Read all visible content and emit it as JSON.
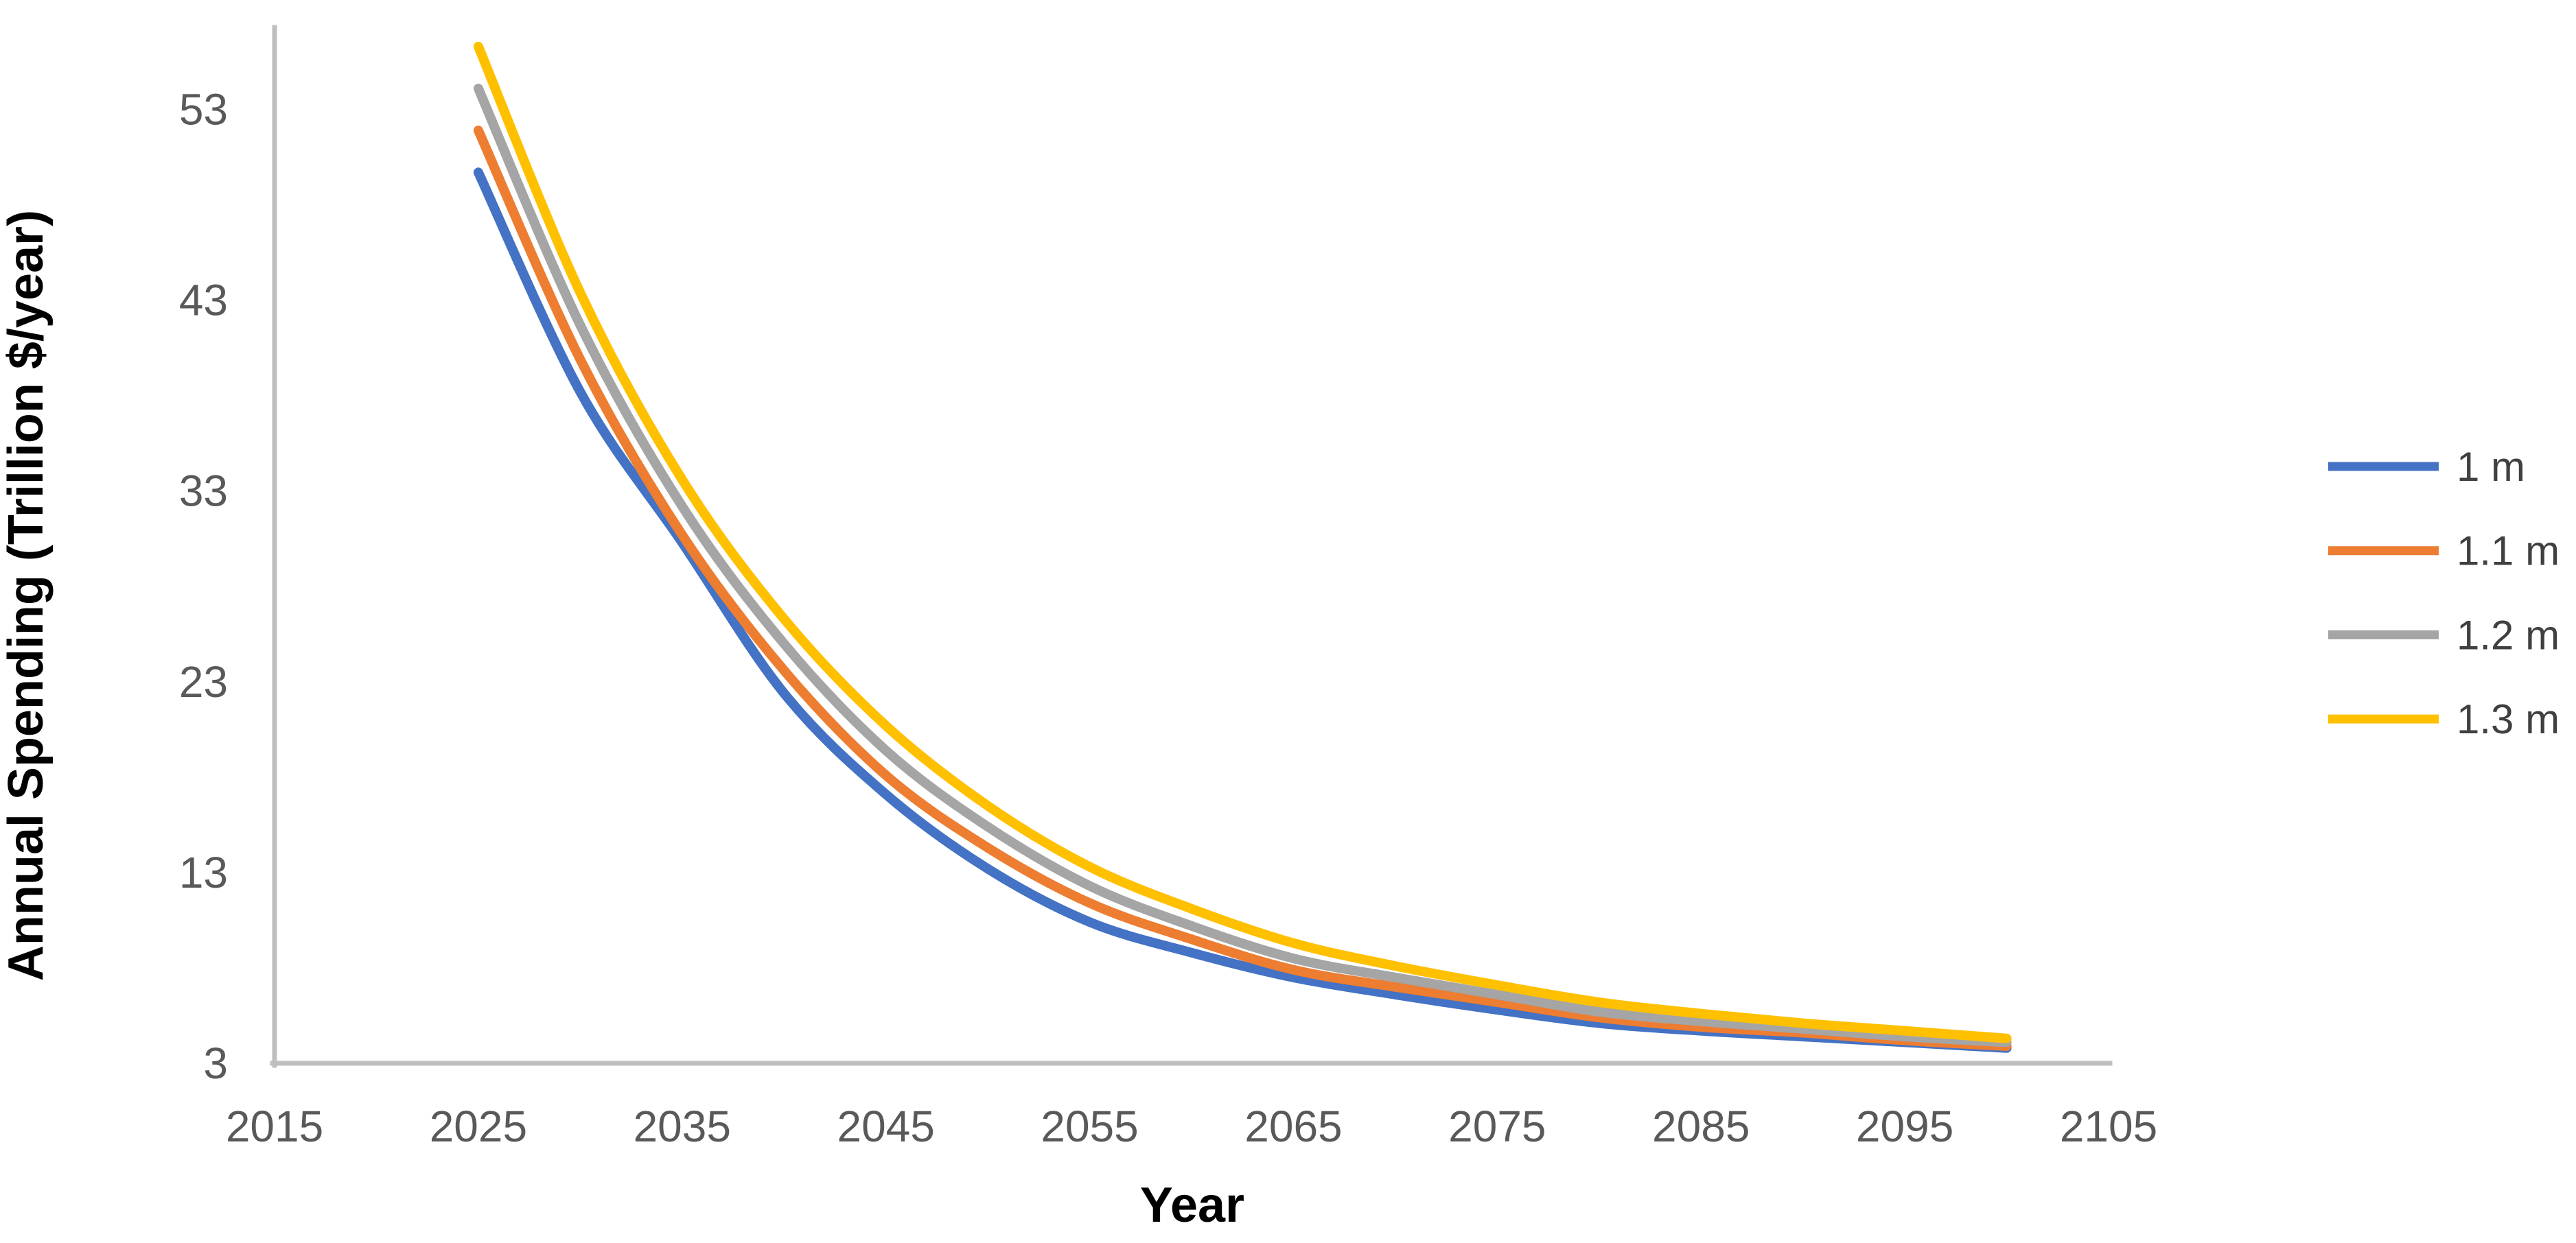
{
  "chart_data": {
    "type": "line",
    "title": "",
    "xlabel": "Year",
    "ylabel": "Annual Spending (Trillion $/year)",
    "x": [
      2025,
      2030,
      2035,
      2040,
      2045,
      2050,
      2055,
      2060,
      2065,
      2070,
      2075,
      2080,
      2085,
      2090,
      2095,
      2100
    ],
    "series": [
      {
        "name": "1 m",
        "color": "#4472C4",
        "values": [
          49.7,
          38.2,
          30.3,
          22.4,
          17.1,
          13.2,
          10.4,
          8.8,
          7.5,
          6.6,
          5.8,
          5.1,
          4.7,
          4.4,
          4.1,
          3.8
        ]
      },
      {
        "name": "1.1 m",
        "color": "#ED7D31",
        "values": [
          51.9,
          39.9,
          30.7,
          23.6,
          18.1,
          14.3,
          11.4,
          9.5,
          7.9,
          7.0,
          6.2,
          5.4,
          4.9,
          4.6,
          4.2,
          3.9
        ]
      },
      {
        "name": "1.2 m",
        "color": "#A5A5A5",
        "values": [
          54.1,
          41.7,
          32.2,
          25.0,
          19.4,
          15.4,
          12.3,
          10.2,
          8.5,
          7.5,
          6.6,
          5.7,
          5.2,
          4.8,
          4.4,
          4.1
        ]
      },
      {
        "name": "1.3 m",
        "color": "#FFC000",
        "values": [
          56.3,
          43.4,
          33.6,
          26.3,
          20.7,
          16.5,
          13.3,
          11.1,
          9.3,
          8.1,
          7.1,
          6.2,
          5.6,
          5.1,
          4.7,
          4.3
        ]
      }
    ],
    "xticks": [
      2015,
      2025,
      2035,
      2045,
      2055,
      2065,
      2075,
      2085,
      2095,
      2105
    ],
    "yticks": [
      3,
      13,
      23,
      33,
      43,
      53
    ],
    "xlim": [
      2015,
      2105
    ],
    "ylim": [
      3,
      57.3
    ],
    "grid": false,
    "legend_position": "right",
    "axis_color": "#BFBFBF",
    "tick_label_color": "#595959",
    "legend_text_color": "#404040"
  }
}
